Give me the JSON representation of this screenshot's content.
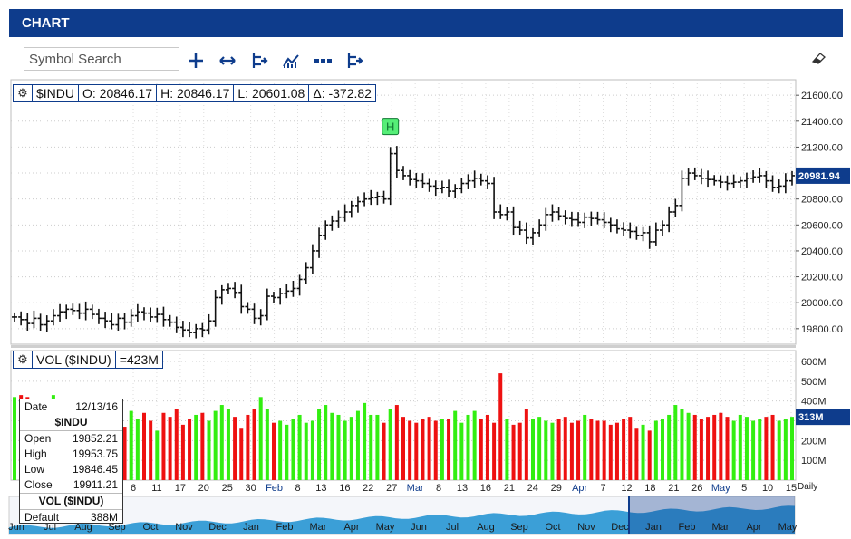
{
  "header": {
    "title": "CHART"
  },
  "search": {
    "placeholder": "Symbol Search"
  },
  "toolbar": [
    {
      "name": "crosshair-icon",
      "glyph": "plus"
    },
    {
      "name": "pan-arrows-icon",
      "glyph": "arrows"
    },
    {
      "name": "bar-style-icon",
      "glyph": "bar"
    },
    {
      "name": "indicators-icon",
      "glyph": "indicator"
    },
    {
      "name": "dotted-line-icon",
      "glyph": "dots"
    },
    {
      "name": "compare-icon",
      "glyph": "bar"
    }
  ],
  "price_info": {
    "symbol": "$INDU",
    "open": "O: 20846.17",
    "high": "H: 20846.17",
    "low": "L: 20601.08",
    "change": "Δ: -372.82"
  },
  "volume_info": {
    "label": "VOL ($INDU)",
    "value": "=423M"
  },
  "last_price_tag": "20981.94",
  "last_volume_tag": "313M",
  "daily_label": "Daily",
  "marker_label": "H",
  "tooltip": {
    "date_label": "Date",
    "date": "12/13/16",
    "symbol": "$INDU",
    "open_label": "Open",
    "open": "19852.21",
    "high_label": "High",
    "high": "19953.75",
    "low_label": "Low",
    "low": "19846.45",
    "close_label": "Close",
    "close": "19911.21",
    "vol_title": "VOL ($INDU)",
    "vol_label": "Default",
    "vol": "388M"
  },
  "colors": {
    "header": "#0e3c8c",
    "up": "#33ee11",
    "down": "#ee1111",
    "nav": "#1a8fd0",
    "price": "#111111"
  },
  "nav_labels": [
    "Jun",
    "Jul",
    "Aug",
    "Sep",
    "Oct",
    "Nov",
    "Dec",
    "Jan",
    "Feb",
    "Mar",
    "Apr",
    "May",
    "Jun",
    "Jul",
    "Aug",
    "Sep",
    "Oct",
    "Nov",
    "Dec",
    "Jan",
    "Feb",
    "Mar",
    "Apr",
    "May"
  ],
  "chart_data": [
    {
      "type": "ohlc",
      "ylim": [
        19680,
        21720
      ],
      "yticks": [
        19800,
        20000,
        20200,
        20400,
        20600,
        20800,
        21000,
        21200,
        21400,
        21600
      ],
      "ytick_labels": [
        "19800.00",
        "20000.00",
        "20200.00",
        "20400.00",
        "20600.00",
        "20800.00",
        "21000.00",
        "21200.00",
        "21400.00",
        "21600.00"
      ],
      "x_labels": [
        "6",
        "11",
        "17",
        "20",
        "25",
        "30",
        "Feb",
        "8",
        "13",
        "16",
        "22",
        "27",
        "Mar",
        "8",
        "13",
        "16",
        "21",
        "24",
        "29",
        "Apr",
        "7",
        "12",
        "18",
        "21",
        "26",
        "May",
        "5",
        "10",
        "15"
      ],
      "close": [
        19890,
        19870,
        19840,
        19880,
        19830,
        19860,
        19900,
        19930,
        19950,
        19940,
        19920,
        19950,
        19910,
        19880,
        19860,
        19830,
        19880,
        19850,
        19900,
        19930,
        19920,
        19890,
        19910,
        19870,
        19850,
        19810,
        19790,
        19770,
        19800,
        19790,
        19860,
        20040,
        20100,
        20110,
        20080,
        19970,
        19950,
        19880,
        19900,
        20050,
        20040,
        20070,
        20090,
        20110,
        20180,
        20270,
        20400,
        20520,
        20600,
        20630,
        20660,
        20700,
        20750,
        20780,
        20800,
        20810,
        20820,
        20800,
        21150,
        21020,
        20980,
        20950,
        20940,
        20920,
        20900,
        20880,
        20890,
        20860,
        20880,
        20920,
        20940,
        20960,
        20940,
        20920,
        20700,
        20680,
        20700,
        20580,
        20560,
        20500,
        20540,
        20600,
        20680,
        20700,
        20670,
        20650,
        20640,
        20620,
        20660,
        20650,
        20640,
        20620,
        20600,
        20570,
        20560,
        20550,
        20520,
        20540,
        20470,
        20560,
        20600,
        20700,
        20750,
        20960,
        21000,
        20980,
        20960,
        20950,
        20940,
        20930,
        20920,
        20930,
        20940,
        20960,
        20970,
        20980,
        20940,
        20890,
        20900,
        20940,
        20980
      ],
      "volume_M": [
        420,
        430,
        420,
        380,
        330,
        350,
        430,
        380,
        330,
        300,
        340,
        330,
        280,
        300,
        350,
        310,
        280,
        270,
        350,
        310,
        340,
        300,
        250,
        340,
        320,
        360,
        280,
        310,
        330,
        340,
        300,
        350,
        380,
        360,
        320,
        260,
        330,
        360,
        420,
        360,
        290,
        300,
        280,
        310,
        330,
        290,
        300,
        360,
        380,
        340,
        330,
        300,
        320,
        350,
        390,
        330,
        330,
        290,
        360,
        380,
        320,
        300,
        290,
        310,
        320,
        300,
        310,
        310,
        350,
        290,
        330,
        350,
        310,
        330,
        290,
        540,
        310,
        280,
        290,
        360,
        310,
        320,
        300,
        290,
        310,
        320,
        290,
        300,
        330,
        310,
        300,
        300,
        280,
        290,
        310,
        320,
        260,
        280,
        250,
        300,
        310,
        330,
        380,
        360,
        340,
        330,
        310,
        320,
        330,
        340,
        320,
        300,
        330,
        320,
        300,
        310,
        320,
        330,
        300,
        310,
        320
      ],
      "volume_ticks": [
        "100M",
        "200M",
        "300M",
        "400M",
        "500M",
        "600M"
      ]
    }
  ]
}
